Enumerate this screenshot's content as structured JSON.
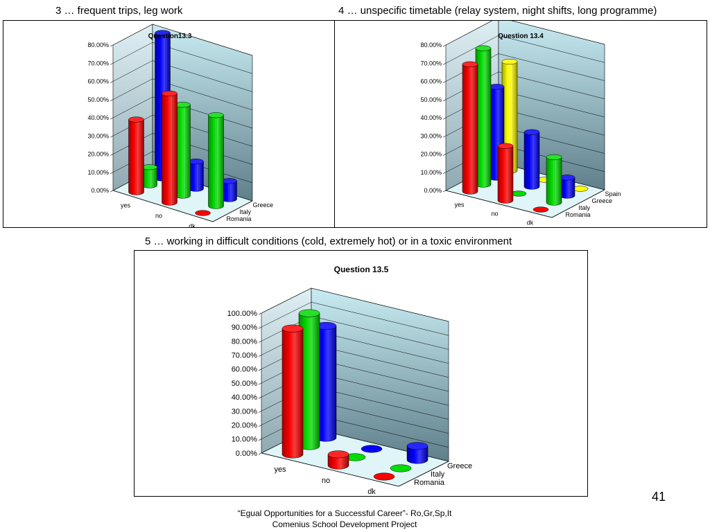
{
  "captions": {
    "top_left": "3 … frequent trips, leg work",
    "top_right": "4 … unspecific timetable (relay system, night shifts, long programme)",
    "bottom": "5 … working in difficult conditions (cold, extremely hot) or in a toxic environment"
  },
  "page_number": "41",
  "footer": {
    "line1": "“Egual Opportunities for a Successful Career”- Ro,Gr,Sp,It",
    "line2": "Comenius School Development Project"
  },
  "colors": {
    "Romania": "#ff0000",
    "Italy": "#00dd00",
    "Greece": "#0000ff",
    "Spain": "#ffff00",
    "wall_top": "#c9ecf3",
    "wall_bottom": "#5f7f8a",
    "floor": "#dff5f8"
  },
  "chart_data": [
    {
      "type": "bar",
      "subtype": "3d-cylinder",
      "title": "Question13.3",
      "categories": [
        "yes",
        "no",
        "dk"
      ],
      "series": [
        {
          "name": "Romania",
          "values": [
            0.4,
            0.6,
            0.0
          ]
        },
        {
          "name": "Italy",
          "values": [
            0.1,
            0.5,
            0.5
          ]
        },
        {
          "name": "Greece",
          "values": [
            0.8,
            0.15,
            0.1
          ]
        }
      ],
      "ylim": [
        0,
        0.8
      ],
      "yticks": [
        "0.00%",
        "10.00%",
        "20.00%",
        "30.00%",
        "40.00%",
        "50.00%",
        "60.00%",
        "70.00%",
        "80.00%"
      ],
      "grid": true
    },
    {
      "type": "bar",
      "subtype": "3d-cylinder",
      "title": "Question 13.4",
      "categories": [
        "yes",
        "no",
        "dk"
      ],
      "series": [
        {
          "name": "Romania",
          "values": [
            0.7,
            0.3,
            0.0
          ]
        },
        {
          "name": "Italy",
          "values": [
            0.75,
            0.0,
            0.25
          ]
        },
        {
          "name": "Greece",
          "values": [
            0.5,
            0.3,
            0.1
          ]
        },
        {
          "name": "Spain",
          "values": [
            0.6,
            0.0,
            0.0
          ]
        }
      ],
      "ylim": [
        0,
        0.8
      ],
      "yticks": [
        "0.00%",
        "10.00%",
        "20.00%",
        "30.00%",
        "40.00%",
        "50.00%",
        "60.00%",
        "70.00%",
        "80.00%"
      ],
      "grid": true
    },
    {
      "type": "bar",
      "subtype": "3d-cylinder",
      "title": "Question 13.5",
      "categories": [
        "yes",
        "no",
        "dk"
      ],
      "series": [
        {
          "name": "Romania",
          "values": [
            0.9,
            0.08,
            0.0
          ]
        },
        {
          "name": "Italy",
          "values": [
            0.95,
            0.0,
            0.0
          ]
        },
        {
          "name": "Greece",
          "values": [
            0.8,
            0.0,
            0.1
          ]
        }
      ],
      "ylim": [
        0,
        1.0
      ],
      "yticks": [
        "0.00%",
        "10.00%",
        "20.00%",
        "30.00%",
        "40.00%",
        "50.00%",
        "60.00%",
        "70.00%",
        "80.00%",
        "90.00%",
        "100.00%"
      ],
      "grid": true
    }
  ]
}
